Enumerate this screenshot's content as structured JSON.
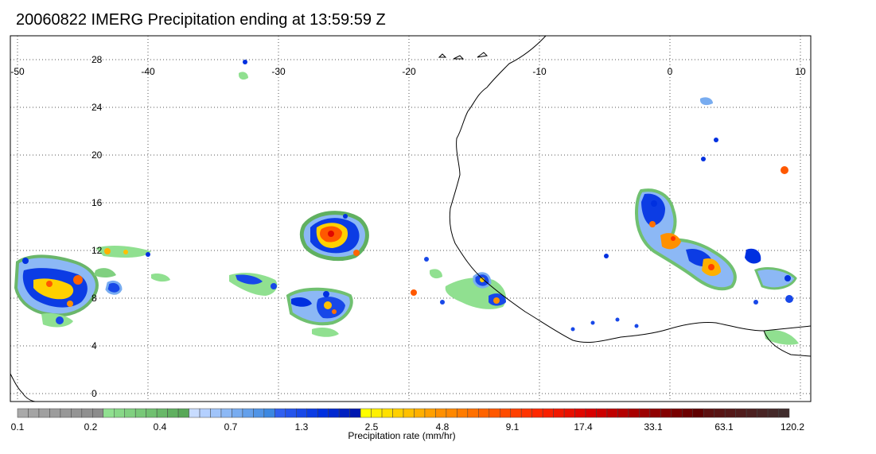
{
  "title": "20060822 IMERG Precipitation ending at 13:59:59 Z",
  "map": {
    "lon_range": [
      -50,
      10
    ],
    "lat_range": [
      -0.5,
      30
    ],
    "lon_ticks": [
      "-50",
      "-40",
      "-30",
      "-20",
      "-10",
      "0",
      "10"
    ],
    "lat_ticks": [
      "28",
      "24",
      "20",
      "16",
      "12",
      "8",
      "4",
      "0"
    ],
    "gridlines": "dotted",
    "coastline_color": "#000000"
  },
  "colorbar": {
    "label": "Precipitation rate (mm/hr)",
    "tick_labels": [
      "0.1",
      "0.2",
      "0.4",
      "0.7",
      "1.3",
      "2.5",
      "4.8",
      "9.1",
      "17.4",
      "33.1",
      "63.1",
      "120.2"
    ],
    "colors": [
      "#a9a9a9",
      "#a4a4a4",
      "#a0a0a0",
      "#9c9c9c",
      "#989898",
      "#949494",
      "#909090",
      "#8c8c8c",
      "#90e090",
      "#88d888",
      "#80d080",
      "#78c878",
      "#70c070",
      "#68b868",
      "#60b060",
      "#58a858",
      "#c8dcff",
      "#b4d0ff",
      "#a0c4fa",
      "#8cb8f5",
      "#78acf0",
      "#64a0eb",
      "#5094e6",
      "#3c88e1",
      "#3060f0",
      "#2454ec",
      "#1848e8",
      "#0c3ce4",
      "#0030e0",
      "#0028d0",
      "#0020c0",
      "#0018b0",
      "#ffff00",
      "#fff000",
      "#ffe000",
      "#ffd000",
      "#ffc000",
      "#ffb000",
      "#ffa000",
      "#ff9000",
      "#ff8800",
      "#ff7c00",
      "#ff7000",
      "#ff6400",
      "#ff5800",
      "#ff4c00",
      "#ff4000",
      "#ff3400",
      "#ff2800",
      "#f82000",
      "#f01800",
      "#e81000",
      "#e00800",
      "#d80000",
      "#cc0000",
      "#c00000",
      "#b40000",
      "#a80000",
      "#9c0000",
      "#900000",
      "#840000",
      "#780000",
      "#6c0000",
      "#600000",
      "#5c1010",
      "#581414",
      "#541818",
      "#501c1c",
      "#4c2020",
      "#482424",
      "#442828",
      "#402c2c"
    ]
  }
}
